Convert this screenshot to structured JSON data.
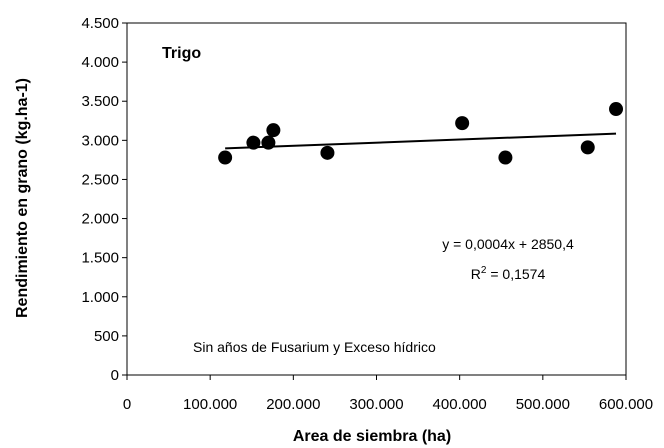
{
  "chart_data": {
    "type": "scatter",
    "title": "",
    "panel_label": "Trigo",
    "xlabel": "Area de siembra (ha)",
    "ylabel": "Rendimiento en grano (kg.ha-1)",
    "xlim": [
      0,
      600000
    ],
    "ylim": [
      0,
      4500
    ],
    "x_ticks": [
      0,
      100000,
      200000,
      300000,
      400000,
      500000,
      600000
    ],
    "x_tick_labels": [
      "0",
      "100.000",
      "200.000",
      "300.000",
      "400.000",
      "500.000",
      "600.000"
    ],
    "y_ticks": [
      0,
      500,
      1000,
      1500,
      2000,
      2500,
      3000,
      3500,
      4000,
      4500
    ],
    "y_tick_labels": [
      "0",
      "500",
      "1.000",
      "1.500",
      "2.000",
      "2.500",
      "3.000",
      "3.500",
      "4.000",
      "4.500"
    ],
    "grid": false,
    "points": [
      {
        "x": 118000,
        "y": 2780
      },
      {
        "x": 152000,
        "y": 2970
      },
      {
        "x": 170000,
        "y": 2970
      },
      {
        "x": 176000,
        "y": 3130
      },
      {
        "x": 241000,
        "y": 2840
      },
      {
        "x": 403000,
        "y": 3220
      },
      {
        "x": 455000,
        "y": 2780
      },
      {
        "x": 554000,
        "y": 2910
      },
      {
        "x": 588000,
        "y": 3400
      }
    ],
    "trendline": {
      "slope": 0.0004,
      "intercept": 2850.4,
      "x_range": [
        118000,
        588000
      ]
    },
    "equation_text": "y = 0,0004x + 2850,4",
    "r2_prefix": "R",
    "r2_sup": "2",
    "r2_suffix": " = 0,1574",
    "note": "Sin años de Fusarium y Exceso hídrico"
  }
}
